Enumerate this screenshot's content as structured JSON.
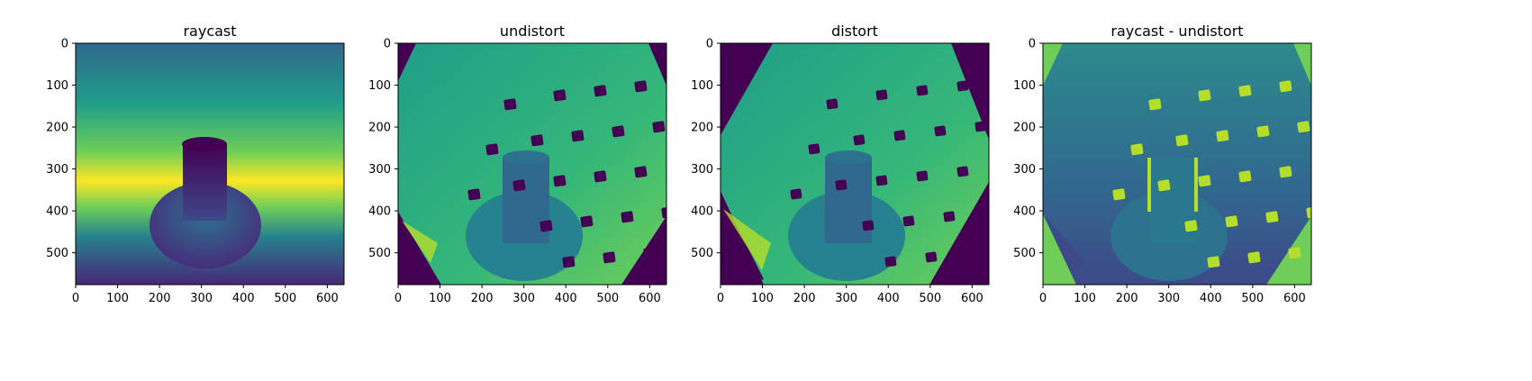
{
  "figure": {
    "background": "#ffffff"
  },
  "colormap": {
    "name": "viridis",
    "stops": [
      "#440154",
      "#482878",
      "#3e4989",
      "#31688e",
      "#26828e",
      "#1f9e89",
      "#35b779",
      "#6ece58",
      "#b5de2b",
      "#fde725"
    ]
  },
  "chart_data": [
    {
      "type": "heatmap",
      "title": "raycast",
      "xlabel": "",
      "ylabel": "",
      "xlim": [
        0,
        640
      ],
      "ylim": [
        576,
        0
      ],
      "xticks": [
        "0",
        "100",
        "200",
        "300",
        "400",
        "500",
        "600"
      ],
      "yticks": [
        "0",
        "100",
        "200",
        "300",
        "400",
        "500"
      ],
      "grid": false,
      "content": "depth image: horizontal gradient bands peaking (yellow) near y=330, cylinder on a circular base centered near x=310"
    },
    {
      "type": "heatmap",
      "title": "undistort",
      "xlabel": "",
      "ylabel": "",
      "xlim": [
        0,
        640
      ],
      "ylim": [
        576,
        0
      ],
      "xticks": [
        "0",
        "100",
        "200",
        "300",
        "400",
        "500",
        "600"
      ],
      "yticks": [
        "0",
        "100",
        "200",
        "300",
        "400",
        "500"
      ],
      "grid": false,
      "content": "depth image with dark corners, checkerboard of dark squares upper right, cylinder on base"
    },
    {
      "type": "heatmap",
      "title": "distort",
      "xlabel": "",
      "ylabel": "",
      "xlim": [
        0,
        640
      ],
      "ylim": [
        576,
        0
      ],
      "xticks": [
        "0",
        "100",
        "200",
        "300",
        "400",
        "500",
        "600"
      ],
      "yticks": [
        "0",
        "100",
        "200",
        "300",
        "400",
        "500"
      ],
      "grid": false,
      "content": "depth image with octagonal valid region, checkerboard of dark squares, cylinder on base"
    },
    {
      "type": "heatmap",
      "title": "raycast - undistort",
      "xlabel": "",
      "ylabel": "",
      "xlim": [
        0,
        640
      ],
      "ylim": [
        576,
        0
      ],
      "xticks": [
        "0",
        "100",
        "200",
        "300",
        "400",
        "500",
        "600"
      ],
      "yticks": [
        "0",
        "100",
        "200",
        "300",
        "400",
        "500"
      ],
      "grid": false,
      "content": "difference image: green corners, bright yellow-green checker squares, cylinder outline"
    }
  ]
}
